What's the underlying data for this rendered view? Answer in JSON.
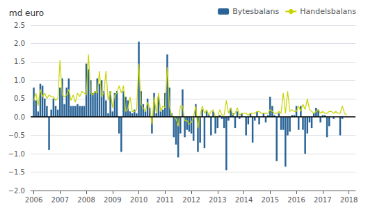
{
  "chart_data": {
    "type": "bar",
    "title": "md euro",
    "x": [
      2006,
      2006.0833,
      2006.1667,
      2006.25,
      2006.3333,
      2006.4167,
      2006.5,
      2006.5833,
      2006.6667,
      2006.75,
      2006.8333,
      2006.9167,
      2007,
      2007.0833,
      2007.1667,
      2007.25,
      2007.3333,
      2007.4167,
      2007.5,
      2007.5833,
      2007.6667,
      2007.75,
      2007.8333,
      2007.9167,
      2008,
      2008.0833,
      2008.1667,
      2008.25,
      2008.3333,
      2008.4167,
      2008.5,
      2008.5833,
      2008.6667,
      2008.75,
      2008.8333,
      2008.9167,
      2009,
      2009.0833,
      2009.1667,
      2009.25,
      2009.3333,
      2009.4167,
      2009.5,
      2009.5833,
      2009.6667,
      2009.75,
      2009.8333,
      2009.9167,
      2010,
      2010.0833,
      2010.1667,
      2010.25,
      2010.3333,
      2010.4167,
      2010.5,
      2010.5833,
      2010.6667,
      2010.75,
      2010.8333,
      2010.9167,
      2011,
      2011.0833,
      2011.1667,
      2011.25,
      2011.3333,
      2011.4167,
      2011.5,
      2011.5833,
      2011.6667,
      2011.75,
      2011.8333,
      2011.9167,
      2012,
      2012.0833,
      2012.1667,
      2012.25,
      2012.3333,
      2012.4167,
      2012.5,
      2012.5833,
      2012.6667,
      2012.75,
      2012.8333,
      2012.9167,
      2013,
      2013.0833,
      2013.1667,
      2013.25,
      2013.3333,
      2013.4167,
      2013.5,
      2013.5833,
      2013.6667,
      2013.75,
      2013.8333,
      2013.9167,
      2014,
      2014.0833,
      2014.1667,
      2014.25,
      2014.3333,
      2014.4167,
      2014.5,
      2014.5833,
      2014.6667,
      2014.75,
      2014.8333,
      2014.9167,
      2015,
      2015.0833,
      2015.1667,
      2015.25,
      2015.3333,
      2015.4167,
      2015.5,
      2015.5833,
      2015.6667,
      2015.75,
      2015.8333,
      2015.9167,
      2016,
      2016.0833,
      2016.1667,
      2016.25,
      2016.3333,
      2016.4167,
      2016.5,
      2016.5833,
      2016.6667,
      2016.75,
      2016.8333,
      2016.9167,
      2017,
      2017.0833,
      2017.1667,
      2017.25,
      2017.3333,
      2017.4167,
      2017.5,
      2017.5833,
      2017.6667,
      2017.75,
      2017.8333,
      2017.9167
    ],
    "series": [
      {
        "name": "Bytesbalans",
        "type": "bar",
        "color": "#2a6496",
        "values": [
          0.8,
          0.45,
          0.15,
          0.9,
          0.85,
          0.5,
          0.3,
          -0.9,
          0.2,
          0.5,
          0.3,
          0.2,
          0.8,
          1.05,
          0.35,
          0.8,
          1.05,
          0.3,
          0.3,
          0.3,
          0.35,
          0.3,
          0.3,
          0.3,
          1.45,
          1.3,
          1.0,
          0.65,
          0.7,
          1.05,
          0.9,
          1.0,
          0.7,
          0.45,
          0.1,
          0.7,
          0.15,
          0.65,
          0.7,
          -0.45,
          -0.95,
          0.7,
          0.55,
          0.45,
          0.15,
          0.1,
          0.2,
          0.1,
          2.05,
          0.7,
          0.35,
          0.15,
          0.5,
          0.25,
          -0.45,
          0.65,
          0.1,
          0.55,
          0.15,
          0.2,
          0.65,
          1.7,
          0.8,
          0.1,
          -0.55,
          -0.75,
          -1.1,
          -0.45,
          0.75,
          -0.55,
          -0.35,
          -0.4,
          -0.45,
          -0.65,
          0.35,
          -0.95,
          -0.7,
          0.2,
          -0.85,
          0.15,
          0.05,
          -0.5,
          0.15,
          -0.45,
          -0.3,
          0.05,
          -0.05,
          -0.3,
          -1.45,
          -0.1,
          0.25,
          0.1,
          -0.3,
          0.15,
          -0.05,
          0.1,
          0.0,
          -0.5,
          -0.2,
          0.1,
          -0.7,
          -0.1,
          0.15,
          -0.2,
          0.0,
          0.1,
          -0.15,
          0.05,
          0.55,
          0.3,
          0.05,
          -1.2,
          0.1,
          -0.35,
          -0.35,
          -1.35,
          -0.5,
          -0.4,
          0.05,
          0.05,
          0.3,
          -0.35,
          0.3,
          -0.35,
          -1.0,
          -0.45,
          -0.15,
          -0.3,
          0.1,
          0.25,
          0.2,
          -0.15,
          0.05,
          0.05,
          -0.55,
          -0.25,
          0.0,
          -0.05,
          0.0,
          0.0,
          -0.5,
          -0.05,
          0.0,
          0.0
        ]
      },
      {
        "name": "Handelsbalans",
        "type": "line",
        "color": "#c8d400",
        "values": [
          0.45,
          0.65,
          0.3,
          0.75,
          0.55,
          0.65,
          0.5,
          0.6,
          0.55,
          0.55,
          0.45,
          0.5,
          1.55,
          0.6,
          0.55,
          0.6,
          0.75,
          0.45,
          0.6,
          0.4,
          0.65,
          0.55,
          0.7,
          0.65,
          0.6,
          1.7,
          0.65,
          0.6,
          0.7,
          0.65,
          1.25,
          0.55,
          0.65,
          1.25,
          0.45,
          0.7,
          0.25,
          0.6,
          0.65,
          0.85,
          0.65,
          0.85,
          0.15,
          0.2,
          0.55,
          0.15,
          0.15,
          0.2,
          1.45,
          0.35,
          0.25,
          0.15,
          0.4,
          0.25,
          -0.2,
          0.55,
          0.1,
          0.65,
          0.15,
          0.3,
          0.25,
          1.35,
          0.3,
          0.05,
          0.0,
          -0.05,
          -0.25,
          0.3,
          0.3,
          -0.1,
          -0.1,
          -0.2,
          -0.15,
          0.0,
          0.3,
          -0.3,
          0.05,
          0.3,
          0.1,
          0.2,
          0.05,
          0.15,
          0.2,
          0.0,
          0.0,
          0.2,
          0.05,
          0.05,
          0.45,
          0.1,
          0.25,
          0.05,
          0.1,
          0.25,
          0.05,
          0.1,
          0.1,
          0.1,
          0.05,
          0.1,
          0.1,
          0.1,
          0.15,
          0.15,
          0.1,
          0.1,
          0.1,
          0.1,
          0.2,
          0.15,
          0.1,
          0.1,
          0.15,
          0.1,
          0.65,
          0.1,
          0.7,
          0.15,
          0.2,
          0.15,
          0.15,
          0.3,
          0.15,
          0.35,
          0.2,
          0.5,
          0.2,
          0.15,
          0.1,
          0.15,
          0.2,
          0.1,
          0.15,
          0.1,
          0.1,
          0.15,
          0.15,
          0.1,
          0.15,
          0.1,
          0.1,
          0.3,
          0.1,
          0.05
        ]
      }
    ],
    "xlim": [
      2005.88,
      2018.25
    ],
    "xticks": [
      2006,
      2007,
      2008,
      2009,
      2010,
      2011,
      2012,
      2013,
      2014,
      2015,
      2016,
      2017,
      2018
    ],
    "ylim": [
      -2.0,
      2.5
    ],
    "yticks": [
      {
        "value": -2.0,
        "label": "−2.0"
      },
      {
        "value": -1.5,
        "label": "−1.5"
      },
      {
        "value": -1.0,
        "label": "−1.0"
      },
      {
        "value": -0.5,
        "label": "−0.5"
      },
      {
        "value": 0.0,
        "label": "0.0"
      },
      {
        "value": 0.5,
        "label": "0.5"
      },
      {
        "value": 1.0,
        "label": "1.0"
      },
      {
        "value": 1.5,
        "label": "1.5"
      },
      {
        "value": 2.0,
        "label": "2.0"
      },
      {
        "value": 2.5,
        "label": "2.5"
      }
    ],
    "grid": true,
    "legend": "upper right"
  }
}
